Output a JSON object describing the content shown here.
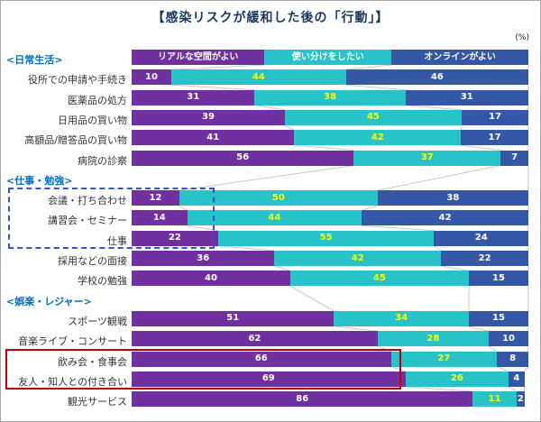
{
  "title": "【感染リスクが緩和した後の「行動」】",
  "unit_label": "(%)",
  "colors": {
    "real": "#7030A0",
    "mixed": "#28C3C9",
    "online": "#3458A5",
    "value_on_real": "#FFFFFF",
    "value_on_mixed": "#FFFF00",
    "value_on_online": "#FFFFFF",
    "title": "#17375E",
    "section_label": "#0070C0",
    "connector": "#C8C8C8",
    "dashed_box": "#3355CC",
    "red_box": "#C00000"
  },
  "chart_data": {
    "type": "bar",
    "orientation": "horizontal-stacked",
    "xlim": [
      0,
      100
    ],
    "series_names": [
      "リアルな空間がよい",
      "使い分けをしたい",
      "オンラインがよい"
    ],
    "sections": [
      {
        "label": "<日常生活>",
        "rows": [
          {
            "label": "役所での申請や手続き",
            "values": [
              10,
              44,
              46
            ]
          },
          {
            "label": "医薬品の処方",
            "values": [
              31,
              38,
              31
            ]
          },
          {
            "label": "日用品の買い物",
            "values": [
              39,
              45,
              17
            ]
          },
          {
            "label": "高額品/贈答品の買い物",
            "values": [
              41,
              42,
              17
            ]
          },
          {
            "label": "病院の診察",
            "values": [
              56,
              37,
              7
            ]
          }
        ]
      },
      {
        "label": "<仕事・勉強>",
        "rows": [
          {
            "label": "会議・打ち合わせ",
            "values": [
              12,
              50,
              38
            ]
          },
          {
            "label": "講習会・セミナー",
            "values": [
              14,
              44,
              42
            ]
          },
          {
            "label": "仕事",
            "values": [
              22,
              55,
              24
            ]
          },
          {
            "label": "採用などの面接",
            "values": [
              36,
              42,
              22
            ]
          },
          {
            "label": "学校の勉強",
            "values": [
              40,
              45,
              15
            ]
          }
        ]
      },
      {
        "label": "<娯楽・レジャー>",
        "rows": [
          {
            "label": "スポーツ観戦",
            "values": [
              51,
              34,
              15
            ]
          },
          {
            "label": "音楽ライブ・コンサート",
            "values": [
              62,
              28,
              10
            ]
          },
          {
            "label": "飲み会・食事会",
            "values": [
              66,
              27,
              8
            ]
          },
          {
            "label": "友人・知人との付き合い",
            "values": [
              69,
              26,
              4
            ]
          },
          {
            "label": "観光サービス",
            "values": [
              86,
              11,
              2
            ]
          }
        ]
      }
    ]
  },
  "annotations": {
    "dashed_box_rows": [
      "会議・打ち合わせ",
      "講習会・セミナー",
      "仕事"
    ],
    "red_box_rows": [
      "飲み会・食事会",
      "友人・知人との付き合い"
    ]
  }
}
